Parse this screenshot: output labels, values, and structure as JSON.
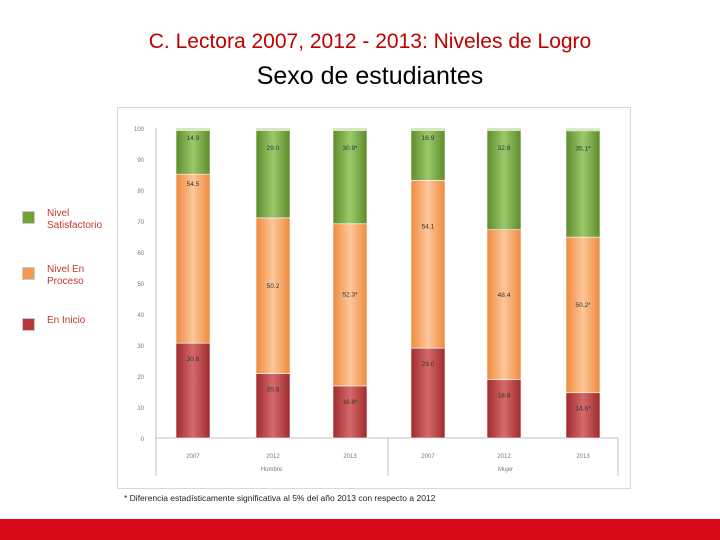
{
  "header": {
    "title": "C. Lectora 2007, 2012 - 2013: Niveles de Logro",
    "subtitle": "Sexo de estudiantes"
  },
  "legend": {
    "items": [
      {
        "label": "Nivel Satisfactorio",
        "color": "#70a23a"
      },
      {
        "label": "Nivel En Proceso",
        "color": "#f59a53"
      },
      {
        "label": "En Inicio",
        "color": "#b8383a"
      }
    ]
  },
  "footnote": "* Diferencia estadísticamente significativa al 5% del año 2013 con respecto a 2012",
  "colors": {
    "satisfactorio": "#70a23a",
    "proceso": "#f59a53",
    "inicio": "#b8383a",
    "brand_red": "#d9091a"
  },
  "chart_data": {
    "type": "bar",
    "stacked": true,
    "ylim": [
      0,
      100
    ],
    "yticks": [
      "0",
      "10",
      "20",
      "30",
      "40",
      "50",
      "60",
      "70",
      "80",
      "90",
      "100"
    ],
    "categories": [
      "2007",
      "2012",
      "2013",
      "2007",
      "2012",
      "2013"
    ],
    "groups": [
      {
        "label": "Hombre",
        "categories": [
          0,
          1,
          2
        ]
      },
      {
        "label": "Mujer",
        "categories": [
          3,
          4,
          5
        ]
      }
    ],
    "series": [
      {
        "name": "En Inicio",
        "color": "#b8383a",
        "values": [
          30.6,
          20.8,
          16.8,
          29.0,
          18.8,
          14.6
        ],
        "labels": [
          "30.6",
          "20.8",
          "16.8*",
          "29.0",
          "18.8",
          "14.6*"
        ]
      },
      {
        "name": "Nivel En Proceso",
        "color": "#f59a53",
        "values": [
          54.5,
          50.2,
          52.3,
          54.1,
          48.4,
          50.2
        ],
        "labels": [
          "54.5",
          "50.2",
          "52.3*",
          "54.1",
          "48.4",
          "50.2*"
        ]
      },
      {
        "name": "Nivel Satisfactorio",
        "color": "#70a23a",
        "values": [
          14.9,
          29.0,
          30.9,
          16.9,
          32.8,
          35.1
        ],
        "labels": [
          "14.9",
          "29.0",
          "30.9*",
          "16.9",
          "32.8",
          "35.1*"
        ]
      }
    ],
    "xlabel": "",
    "ylabel": "",
    "grid": false,
    "legend_position": "left"
  }
}
